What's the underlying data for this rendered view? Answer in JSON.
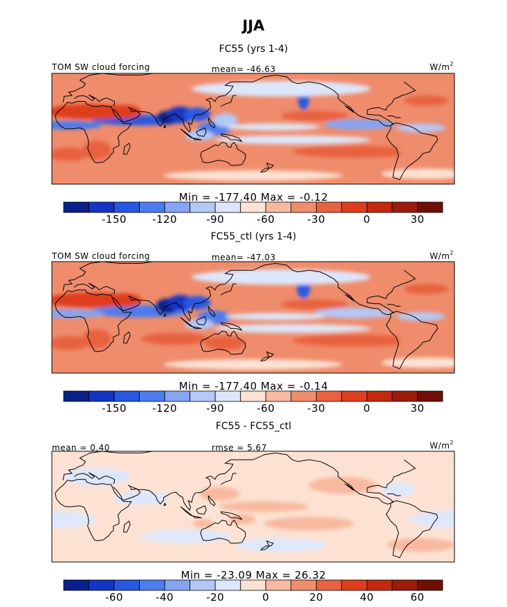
{
  "season": "JJA",
  "colors": {
    "scale": [
      "#08208a",
      "#1334c6",
      "#2958e0",
      "#4d7cee",
      "#86a4f2",
      "#b4c8f6",
      "#dde7fb",
      "#fde2d3",
      "#f7b99f",
      "#ef8c6c",
      "#e86240",
      "#df3e1c",
      "#c4290e",
      "#9c1c0c",
      "#6e0f06"
    ],
    "coast": "#000000"
  },
  "chart_data": [
    {
      "type": "heatmap",
      "title": "FC55 (yrs 1-4)",
      "field_label": "TOM SW cloud forcing",
      "units": "W/m",
      "units_exp": "2",
      "stat_text": "mean= -46.63",
      "minmax_text": "Min = -177.40 Max = -0.12",
      "colorbar": {
        "labels": [
          "-150",
          "-120",
          "-90",
          "-60",
          "-30",
          "0",
          "30"
        ]
      },
      "blobs": [
        {
          "lon": 60,
          "lat": 15,
          "rx": 44,
          "ry": 6,
          "v": -140
        },
        {
          "lon": 83,
          "lat": 18,
          "rx": 9,
          "ry": 8,
          "v": -170
        },
        {
          "lon": 95,
          "lat": 22,
          "rx": 12,
          "ry": 9,
          "v": -160
        },
        {
          "lon": 110,
          "lat": 22,
          "rx": 12,
          "ry": 8,
          "v": -150
        },
        {
          "lon": 125,
          "lat": 5,
          "rx": 15,
          "ry": 8,
          "v": -130
        },
        {
          "lon": 135,
          "lat": 15,
          "rx": 11,
          "ry": 8,
          "v": -95
        },
        {
          "lon": 112,
          "lat": -3,
          "rx": 13,
          "ry": 6,
          "v": -105
        },
        {
          "lon": -5,
          "lat": 9,
          "rx": 30,
          "ry": 5,
          "v": -125
        },
        {
          "lon": -50,
          "lat": 6,
          "rx": 22,
          "ry": 5,
          "v": -100
        },
        {
          "lon": 205,
          "lat": 40,
          "rx": 5,
          "ry": 13,
          "v": -150
        },
        {
          "lon": 255,
          "lat": 10,
          "rx": 32,
          "ry": 6,
          "v": -110
        },
        {
          "lon": 178,
          "lat": 7,
          "rx": 42,
          "ry": 4,
          "v": -85
        },
        {
          "lon": 195,
          "lat": -8,
          "rx": 70,
          "ry": 5,
          "v": -80
        },
        {
          "lon": 185,
          "lat": 52,
          "rx": 80,
          "ry": 9,
          "v": -90
        },
        {
          "lon": -45,
          "lat": -48,
          "rx": 40,
          "ry": 6,
          "v": -70
        },
        {
          "lon": 160,
          "lat": -50,
          "rx": 80,
          "ry": 6,
          "v": -70
        },
        {
          "lon": 15,
          "lat": 25,
          "rx": 40,
          "ry": 9,
          "v": -15
        },
        {
          "lon": 45,
          "lat": 25,
          "rx": 15,
          "ry": 8,
          "v": -12
        },
        {
          "lon": 20,
          "lat": -20,
          "rx": 13,
          "ry": 11,
          "v": -20
        },
        {
          "lon": 215,
          "lat": 20,
          "rx": 30,
          "ry": 6,
          "v": -25
        },
        {
          "lon": 250,
          "lat": -22,
          "rx": 55,
          "ry": 7,
          "v": -25
        },
        {
          "lon": -5,
          "lat": -25,
          "rx": 18,
          "ry": 8,
          "v": -30
        },
        {
          "lon": -55,
          "lat": -20,
          "rx": 15,
          "ry": 9,
          "v": -35
        },
        {
          "lon": 135,
          "lat": -25,
          "rx": 18,
          "ry": 8,
          "v": -35
        },
        {
          "lon": 90,
          "lat": -20,
          "rx": 30,
          "ry": 7,
          "v": -35
        },
        {
          "lon": -45,
          "lat": 38,
          "rx": 20,
          "ry": 6,
          "v": -30
        }
      ]
    },
    {
      "type": "heatmap",
      "title": "FC55_ctl (yrs 1-4)",
      "field_label": "TOM SW cloud forcing",
      "units": "W/m",
      "units_exp": "2",
      "stat_text": "mean= -47.03",
      "minmax_text": "Min = -177.40 Max = -0.14",
      "colorbar": {
        "labels": [
          "-150",
          "-120",
          "-90",
          "-60",
          "-30",
          "0",
          "30"
        ]
      },
      "blobs": [
        {
          "lon": 60,
          "lat": 12,
          "rx": 44,
          "ry": 7,
          "v": -135
        },
        {
          "lon": 83,
          "lat": 18,
          "rx": 10,
          "ry": 9,
          "v": -170
        },
        {
          "lon": 95,
          "lat": 22,
          "rx": 12,
          "ry": 9,
          "v": -160
        },
        {
          "lon": 110,
          "lat": 22,
          "rx": 12,
          "ry": 8,
          "v": -145
        },
        {
          "lon": 125,
          "lat": 5,
          "rx": 15,
          "ry": 8,
          "v": -125
        },
        {
          "lon": 112,
          "lat": -3,
          "rx": 13,
          "ry": 6,
          "v": -105
        },
        {
          "lon": -5,
          "lat": 9,
          "rx": 32,
          "ry": 5,
          "v": -120
        },
        {
          "lon": -50,
          "lat": 6,
          "rx": 22,
          "ry": 5,
          "v": -105
        },
        {
          "lon": 205,
          "lat": 40,
          "rx": 6,
          "ry": 13,
          "v": -145
        },
        {
          "lon": 250,
          "lat": 10,
          "rx": 35,
          "ry": 6,
          "v": -105
        },
        {
          "lon": 180,
          "lat": 6,
          "rx": 45,
          "ry": 4,
          "v": -85
        },
        {
          "lon": 195,
          "lat": -8,
          "rx": 70,
          "ry": 5,
          "v": -80
        },
        {
          "lon": 185,
          "lat": 52,
          "rx": 80,
          "ry": 9,
          "v": -90
        },
        {
          "lon": -45,
          "lat": -48,
          "rx": 40,
          "ry": 6,
          "v": -70
        },
        {
          "lon": 160,
          "lat": -50,
          "rx": 80,
          "ry": 6,
          "v": -70
        },
        {
          "lon": 15,
          "lat": 25,
          "rx": 40,
          "ry": 9,
          "v": -15
        },
        {
          "lon": 45,
          "lat": 25,
          "rx": 15,
          "ry": 8,
          "v": -12
        },
        {
          "lon": 20,
          "lat": -20,
          "rx": 13,
          "ry": 11,
          "v": -18
        },
        {
          "lon": 215,
          "lat": 20,
          "rx": 30,
          "ry": 6,
          "v": -25
        },
        {
          "lon": 250,
          "lat": -22,
          "rx": 55,
          "ry": 7,
          "v": -28
        },
        {
          "lon": -5,
          "lat": -25,
          "rx": 18,
          "ry": 8,
          "v": -30
        },
        {
          "lon": -55,
          "lat": -20,
          "rx": 15,
          "ry": 9,
          "v": -35
        },
        {
          "lon": 135,
          "lat": -25,
          "rx": 18,
          "ry": 8,
          "v": -30
        },
        {
          "lon": 90,
          "lat": -20,
          "rx": 30,
          "ry": 7,
          "v": -30
        },
        {
          "lon": -45,
          "lat": 38,
          "rx": 20,
          "ry": 6,
          "v": -30
        }
      ]
    },
    {
      "type": "heatmap",
      "title": "FC55 - FC55_ctl",
      "field_label": "",
      "units": "W/m",
      "units_exp": "2",
      "stat_text": "mean = 0.40",
      "stat_text2": "rmse = 5.67",
      "minmax_text": "Min = -23.09 Max = 26.32",
      "colorbar": {
        "labels": [
          "-60",
          "-40",
          "-20",
          "0",
          "20",
          "40",
          "60"
        ]
      },
      "blobs": [
        {
          "lon": 60,
          "lat": 15,
          "rx": 25,
          "ry": 8,
          "v": -8
        },
        {
          "lon": 170,
          "lat": 5,
          "rx": 40,
          "ry": 6,
          "v": 10
        },
        {
          "lon": 130,
          "lat": 20,
          "rx": 18,
          "ry": 8,
          "v": 9
        },
        {
          "lon": -20,
          "lat": -10,
          "rx": 40,
          "ry": 10,
          "v": -8
        },
        {
          "lon": 210,
          "lat": -15,
          "rx": 40,
          "ry": 8,
          "v": 9
        },
        {
          "lon": 100,
          "lat": -30,
          "rx": 40,
          "ry": 8,
          "v": -8
        },
        {
          "lon": 240,
          "lat": 30,
          "rx": 30,
          "ry": 10,
          "v": 9
        },
        {
          "lon": 20,
          "lat": 40,
          "rx": 30,
          "ry": 10,
          "v": -7
        },
        {
          "lon": -50,
          "lat": -40,
          "rx": 30,
          "ry": 8,
          "v": 8
        },
        {
          "lon": 150,
          "lat": -10,
          "rx": 12,
          "ry": 6,
          "v": 14
        },
        {
          "lon": 115,
          "lat": -15,
          "rx": 9,
          "ry": 5,
          "v": 13
        },
        {
          "lon": 185,
          "lat": -40,
          "rx": 40,
          "ry": 8,
          "v": -8
        },
        {
          "lon": -70,
          "lat": 25,
          "rx": 15,
          "ry": 8,
          "v": -7
        }
      ]
    }
  ]
}
